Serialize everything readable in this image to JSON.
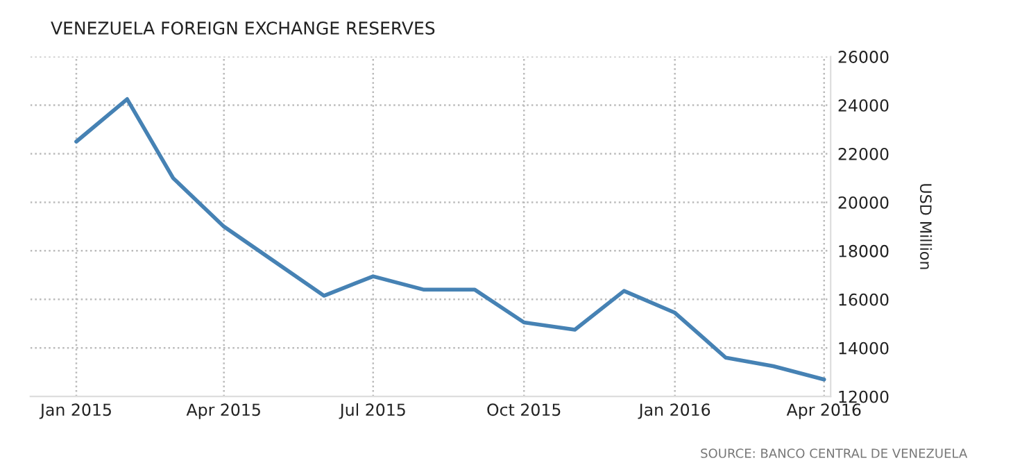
{
  "chart_data": {
    "type": "line",
    "title": "VENEZUELA FOREIGN EXCHANGE RESERVES",
    "ylabel": "USD Million",
    "x": [
      "2015-01",
      "2015-02",
      "2015-03",
      "2015-04",
      "2015-05",
      "2015-06",
      "2015-07",
      "2015-08",
      "2015-09",
      "2015-10",
      "2015-11",
      "2015-12",
      "2016-01",
      "2016-02",
      "2016-03",
      "2016-04"
    ],
    "series": [
      {
        "color": "#4682b4",
        "values": [
          22500,
          24250,
          21000,
          19000,
          17600,
          16150,
          16950,
          16400,
          16400,
          15050,
          14750,
          16350,
          15450,
          13600,
          13250,
          12700
        ]
      }
    ],
    "xlim": [
      "2014-12-04",
      "2016-04-05"
    ],
    "xticks": [
      {
        "value": "2015-01",
        "label": "Jan 2015"
      },
      {
        "value": "2015-04",
        "label": "Apr 2015"
      },
      {
        "value": "2015-07",
        "label": "Jul 2015"
      },
      {
        "value": "2015-10",
        "label": "Oct 2015"
      },
      {
        "value": "2016-01",
        "label": "Jan 2016"
      },
      {
        "value": "2016-04",
        "label": "Apr 2016"
      }
    ],
    "ylim": [
      12000,
      26000
    ],
    "yticks": [
      12000,
      14000,
      16000,
      18000,
      20000,
      22000,
      24000,
      26000
    ],
    "grid": true,
    "line_style": "solid",
    "marker": "none",
    "annotations": [
      "SOURCE: BANCO CENTRAL DE VENEZUELA"
    ]
  }
}
